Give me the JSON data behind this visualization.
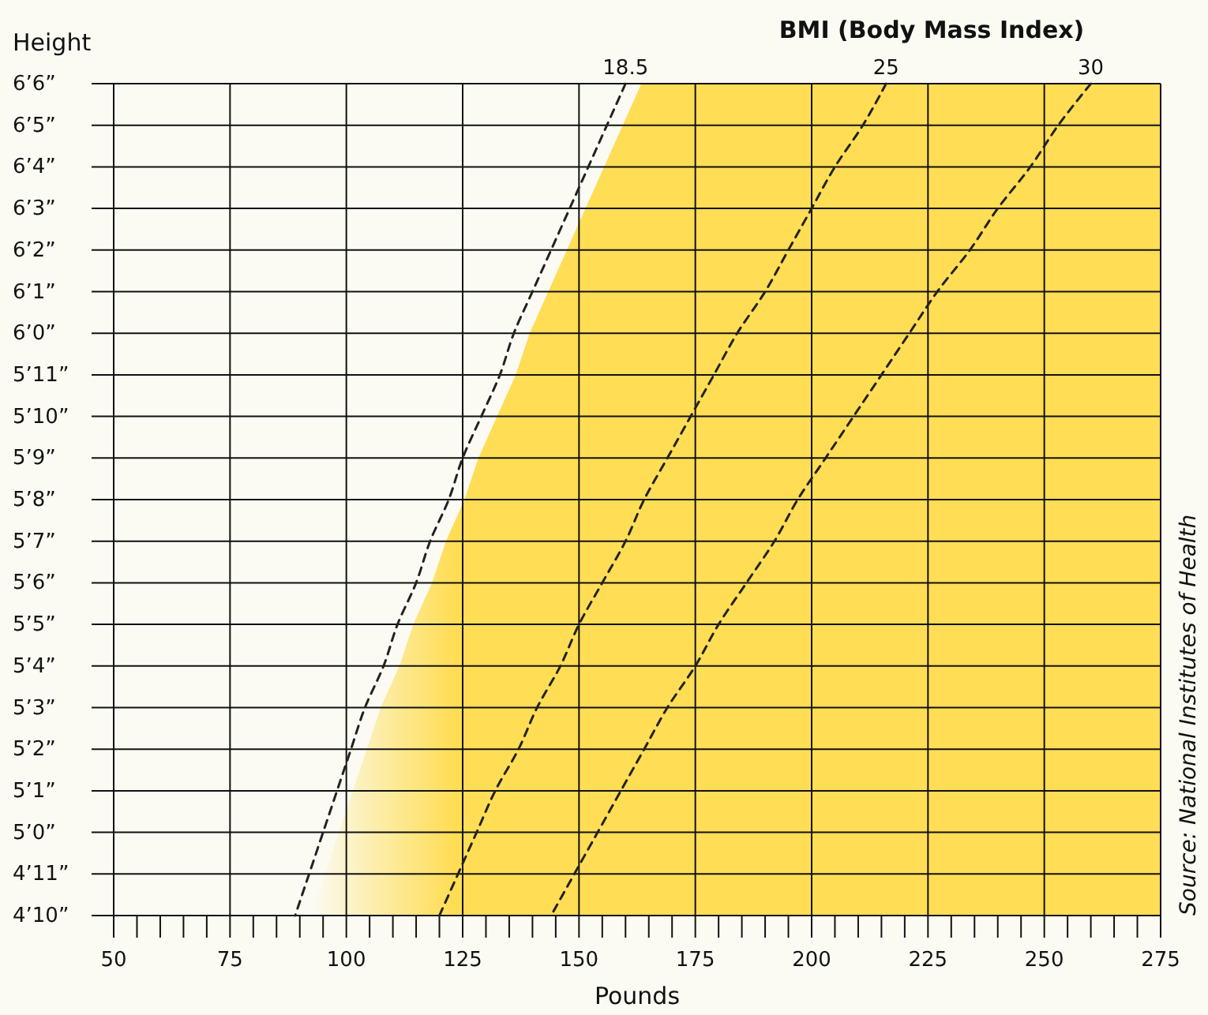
{
  "chart_data": {
    "type": "line",
    "orientation": "horizontal",
    "ylabel": "Height",
    "xlabel": "Pounds",
    "legend_title": "BMI (Body Mass Index)",
    "annotations": [
      "Source: National Institutes of Health"
    ],
    "xlim": [
      50,
      275
    ],
    "xticks": [
      50,
      {
        "value": 55,
        "label": null
      },
      {
        "value": 60,
        "label": null
      },
      {
        "value": 65,
        "label": null
      },
      {
        "value": 70,
        "label": null
      },
      75,
      {
        "value": 80,
        "label": null
      },
      {
        "value": 85,
        "label": null
      },
      {
        "value": 90,
        "label": null
      },
      {
        "value": 95,
        "label": null
      },
      100,
      {
        "value": 105,
        "label": null
      },
      {
        "value": 110,
        "label": null
      },
      {
        "value": 115,
        "label": null
      },
      {
        "value": 120,
        "label": null
      },
      125,
      {
        "value": 130,
        "label": null
      },
      {
        "value": 135,
        "label": null
      },
      {
        "value": 140,
        "label": null
      },
      {
        "value": 145,
        "label": null
      },
      150,
      {
        "value": 155,
        "label": null
      },
      {
        "value": 160,
        "label": null
      },
      {
        "value": 165,
        "label": null
      },
      {
        "value": 170,
        "label": null
      },
      175,
      {
        "value": 180,
        "label": null
      },
      {
        "value": 185,
        "label": null
      },
      {
        "value": 190,
        "label": null
      },
      {
        "value": 195,
        "label": null
      },
      200,
      {
        "value": 205,
        "label": null
      },
      {
        "value": 210,
        "label": null
      },
      {
        "value": 215,
        "label": null
      },
      {
        "value": 220,
        "label": null
      },
      225,
      {
        "value": 230,
        "label": null
      },
      {
        "value": 235,
        "label": null
      },
      {
        "value": 240,
        "label": null
      },
      {
        "value": 245,
        "label": null
      },
      250,
      {
        "value": 255,
        "label": null
      },
      {
        "value": 260,
        "label": null
      },
      {
        "value": 265,
        "label": null
      },
      {
        "value": 270,
        "label": null
      },
      275
    ],
    "categories": [
      "6’6”",
      "6’5”",
      "6’4”",
      "6’3”",
      "6’2”",
      "6’1”",
      "6’0”",
      "5’11”",
      "5’10”",
      "5’9”",
      "5’8”",
      "5’7”",
      "5’6”",
      "5’5”",
      "5’4”",
      "5’3”",
      "5’2”",
      "5’1”",
      "5’0”",
      "4’11”",
      "4’10”"
    ],
    "grid": true,
    "line_style": "dashed",
    "marker": "none",
    "series": [
      {
        "name": "18.5",
        "color": "#222222",
        "values": [
          160,
          156,
          152,
          148,
          144,
          140,
          136,
          133,
          129,
          125,
          122,
          118,
          115,
          111,
          108,
          104,
          101,
          98,
          95,
          92,
          89
        ]
      },
      {
        "name": "25",
        "color": "#222222",
        "values": [
          216,
          211,
          205,
          200,
          195,
          190,
          184,
          179,
          174,
          169,
          164,
          160,
          155,
          150,
          146,
          141,
          137,
          132,
          128,
          124,
          120
        ]
      },
      {
        "name": "30",
        "color": "#222222",
        "values": [
          260,
          253,
          247,
          240,
          234,
          227,
          221,
          215,
          209,
          203,
          197,
          192,
          186,
          180,
          175,
          169,
          164,
          159,
          154,
          149,
          144
        ]
      }
    ]
  }
}
